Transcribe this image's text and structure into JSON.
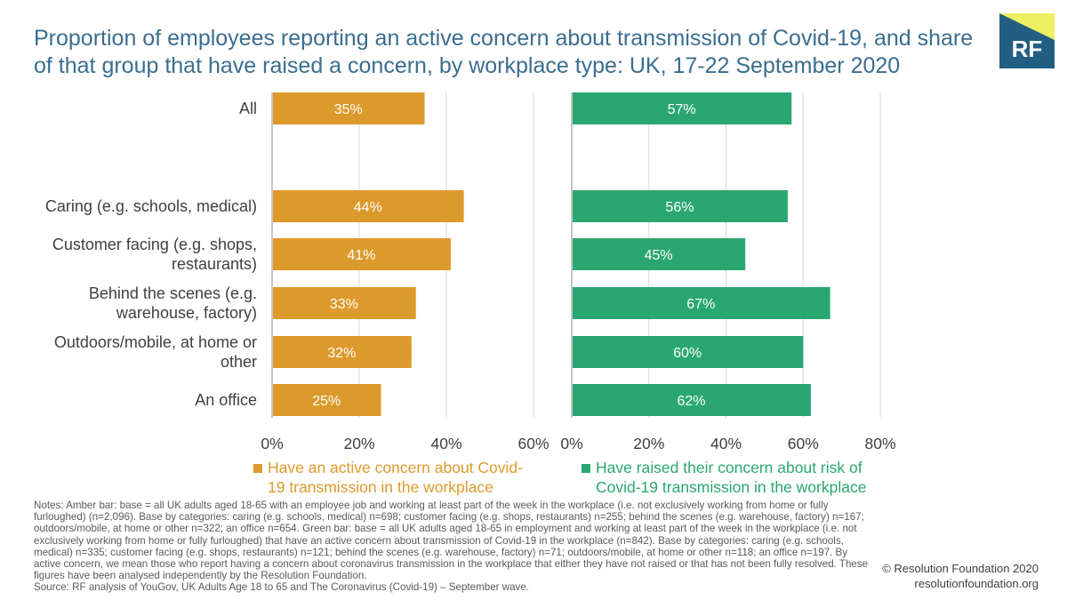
{
  "title": "Proportion of employees reporting an active concern about transmission of Covid-19, and share of that group that have raised a concern, by workplace type: UK, 17-22 September 2020",
  "logo": "RF",
  "colors": {
    "amber": "#dd9a2c",
    "green": "#2aa771",
    "title": "#3b6e8f",
    "logo": "#225e82",
    "grid": "#d9d9d9"
  },
  "chart_data": [
    {
      "type": "bar",
      "orientation": "horizontal",
      "categories": [
        "All",
        "Caring (e.g. schools, medical)",
        "Customer facing (e.g. shops, restaurants)",
        "Behind the scenes (e.g. warehouse, factory)",
        "Outdoors/mobile, at home or other",
        "An office"
      ],
      "series": [
        {
          "name": "Have an active concern about Covid-19 transmission in the workplace",
          "values": [
            35,
            44,
            41,
            33,
            32,
            25
          ]
        }
      ],
      "data_labels": [
        "35%",
        "44%",
        "41%",
        "33%",
        "32%",
        "25%"
      ],
      "xlim": [
        0,
        60
      ],
      "ticks": [
        "0%",
        "20%",
        "40%",
        "60%"
      ],
      "grid": true
    },
    {
      "type": "bar",
      "orientation": "horizontal",
      "categories": [
        "All",
        "Caring (e.g. schools, medical)",
        "Customer facing (e.g. shops, restaurants)",
        "Behind the scenes (e.g. warehouse, factory)",
        "Outdoors/mobile, at home or other",
        "An office"
      ],
      "series": [
        {
          "name": "Have raised their concern about risk of Covid-19 transmission in the workplace",
          "values": [
            57,
            56,
            45,
            67,
            60,
            62
          ]
        }
      ],
      "data_labels": [
        "57%",
        "56%",
        "45%",
        "67%",
        "60%",
        "62%"
      ],
      "xlim": [
        0,
        80
      ],
      "ticks": [
        "0%",
        "20%",
        "40%",
        "60%",
        "80%"
      ],
      "grid": true
    }
  ],
  "category_labels": [
    [
      "All"
    ],
    [
      "Caring (e.g. schools, medical)"
    ],
    [
      "Customer facing (e.g. shops,",
      "restaurants)"
    ],
    [
      "Behind the scenes (e.g.",
      "warehouse, factory)"
    ],
    [
      "Outdoors/mobile, at home or",
      "other"
    ],
    [
      "An office"
    ]
  ],
  "legend": {
    "amber_lines": [
      "Have an active concern about Covid-",
      "19 transmission in the workplace"
    ],
    "green_lines": [
      "Have raised their concern about risk of",
      "Covid-19 transmission in the workplace"
    ]
  },
  "notes": "Notes: Amber bar: base = all UK adults aged 18-65 with an employee job and working at least part of the week in the workplace (i.e. not exclusively working from home or fully furloughed) (n=2,096). Base by categories: caring (e.g. schools, medical) n=698; customer facing (e.g. shops, restaurants) n=255; behind the scenes (e.g. warehouse, factory) n=167; outdoors/mobile, at home or other n=322; an office n=654. Green bar: base = all UK adults aged 18-65 in employment and working at least part of the week in the workplace (i.e. not exclusively working from home or fully furloughed) that have an active concern about transmission of Covid-19 in the workplace (n=842). Base by categories: caring (e.g. schools, medical) n=335; customer facing (e.g. shops, restaurants) n=121; behind the scenes (e.g. warehouse, factory) n=71; outdoors/mobile, at home or other n=118; an office n=197. By active concern, we mean those who report having a concern about coronavirus transmission in the workplace that either they have not raised or that has not been fully resolved. These figures have been analysed independently by the Resolution Foundation.",
  "source": "Source: RF analysis of YouGov, UK Adults Age 18 to 65 and The Coronavirus (Covid-19) – September wave.",
  "copyright": "© Resolution Foundation 2020",
  "website": "resolutionfoundation.org"
}
